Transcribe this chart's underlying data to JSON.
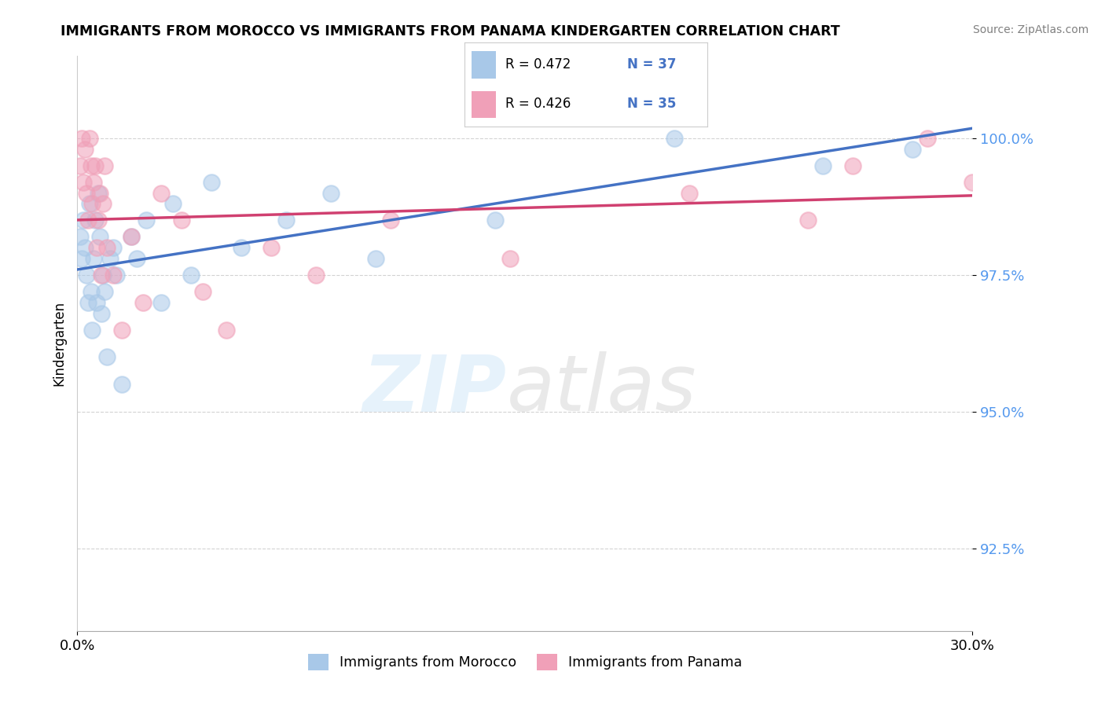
{
  "title": "IMMIGRANTS FROM MOROCCO VS IMMIGRANTS FROM PANAMA KINDERGARTEN CORRELATION CHART",
  "source": "Source: ZipAtlas.com",
  "ylabel": "Kindergarten",
  "yticks": [
    92.5,
    95.0,
    97.5,
    100.0
  ],
  "ytick_labels": [
    "92.5%",
    "95.0%",
    "97.5%",
    "100.0%"
  ],
  "xlim": [
    0.0,
    30.0
  ],
  "ylim": [
    91.0,
    101.5
  ],
  "legend_r_morocco": "R = 0.472",
  "legend_n_morocco": "N = 37",
  "legend_r_panama": "R = 0.426",
  "legend_n_panama": "N = 35",
  "morocco_color": "#a8c8e8",
  "panama_color": "#f0a0b8",
  "morocco_line_color": "#4472c4",
  "panama_line_color": "#d04070",
  "background_color": "#ffffff",
  "morocco_x": [
    0.1,
    0.15,
    0.2,
    0.25,
    0.3,
    0.35,
    0.4,
    0.45,
    0.5,
    0.55,
    0.6,
    0.65,
    0.7,
    0.75,
    0.8,
    0.85,
    0.9,
    1.0,
    1.1,
    1.2,
    1.3,
    1.5,
    1.8,
    2.0,
    2.3,
    2.8,
    3.2,
    3.8,
    4.5,
    5.5,
    7.0,
    8.5,
    10.0,
    14.0,
    20.0,
    25.0,
    28.0
  ],
  "morocco_y": [
    98.2,
    97.8,
    98.5,
    98.0,
    97.5,
    97.0,
    98.8,
    97.2,
    96.5,
    97.8,
    98.5,
    97.0,
    99.0,
    98.2,
    96.8,
    97.5,
    97.2,
    96.0,
    97.8,
    98.0,
    97.5,
    95.5,
    98.2,
    97.8,
    98.5,
    97.0,
    98.8,
    97.5,
    99.2,
    98.0,
    98.5,
    99.0,
    97.8,
    98.5,
    100.0,
    99.5,
    99.8
  ],
  "panama_x": [
    0.1,
    0.15,
    0.2,
    0.25,
    0.3,
    0.35,
    0.4,
    0.45,
    0.5,
    0.55,
    0.6,
    0.65,
    0.7,
    0.75,
    0.8,
    0.85,
    0.9,
    1.0,
    1.2,
    1.5,
    1.8,
    2.2,
    2.8,
    3.5,
    4.2,
    5.0,
    6.5,
    8.0,
    10.5,
    14.5,
    20.5,
    24.5,
    26.0,
    28.5,
    30.0
  ],
  "panama_y": [
    99.5,
    100.0,
    99.2,
    99.8,
    99.0,
    98.5,
    100.0,
    99.5,
    98.8,
    99.2,
    99.5,
    98.0,
    98.5,
    99.0,
    97.5,
    98.8,
    99.5,
    98.0,
    97.5,
    96.5,
    98.2,
    97.0,
    99.0,
    98.5,
    97.2,
    96.5,
    98.0,
    97.5,
    98.5,
    97.8,
    99.0,
    98.5,
    99.5,
    100.0,
    99.2
  ]
}
